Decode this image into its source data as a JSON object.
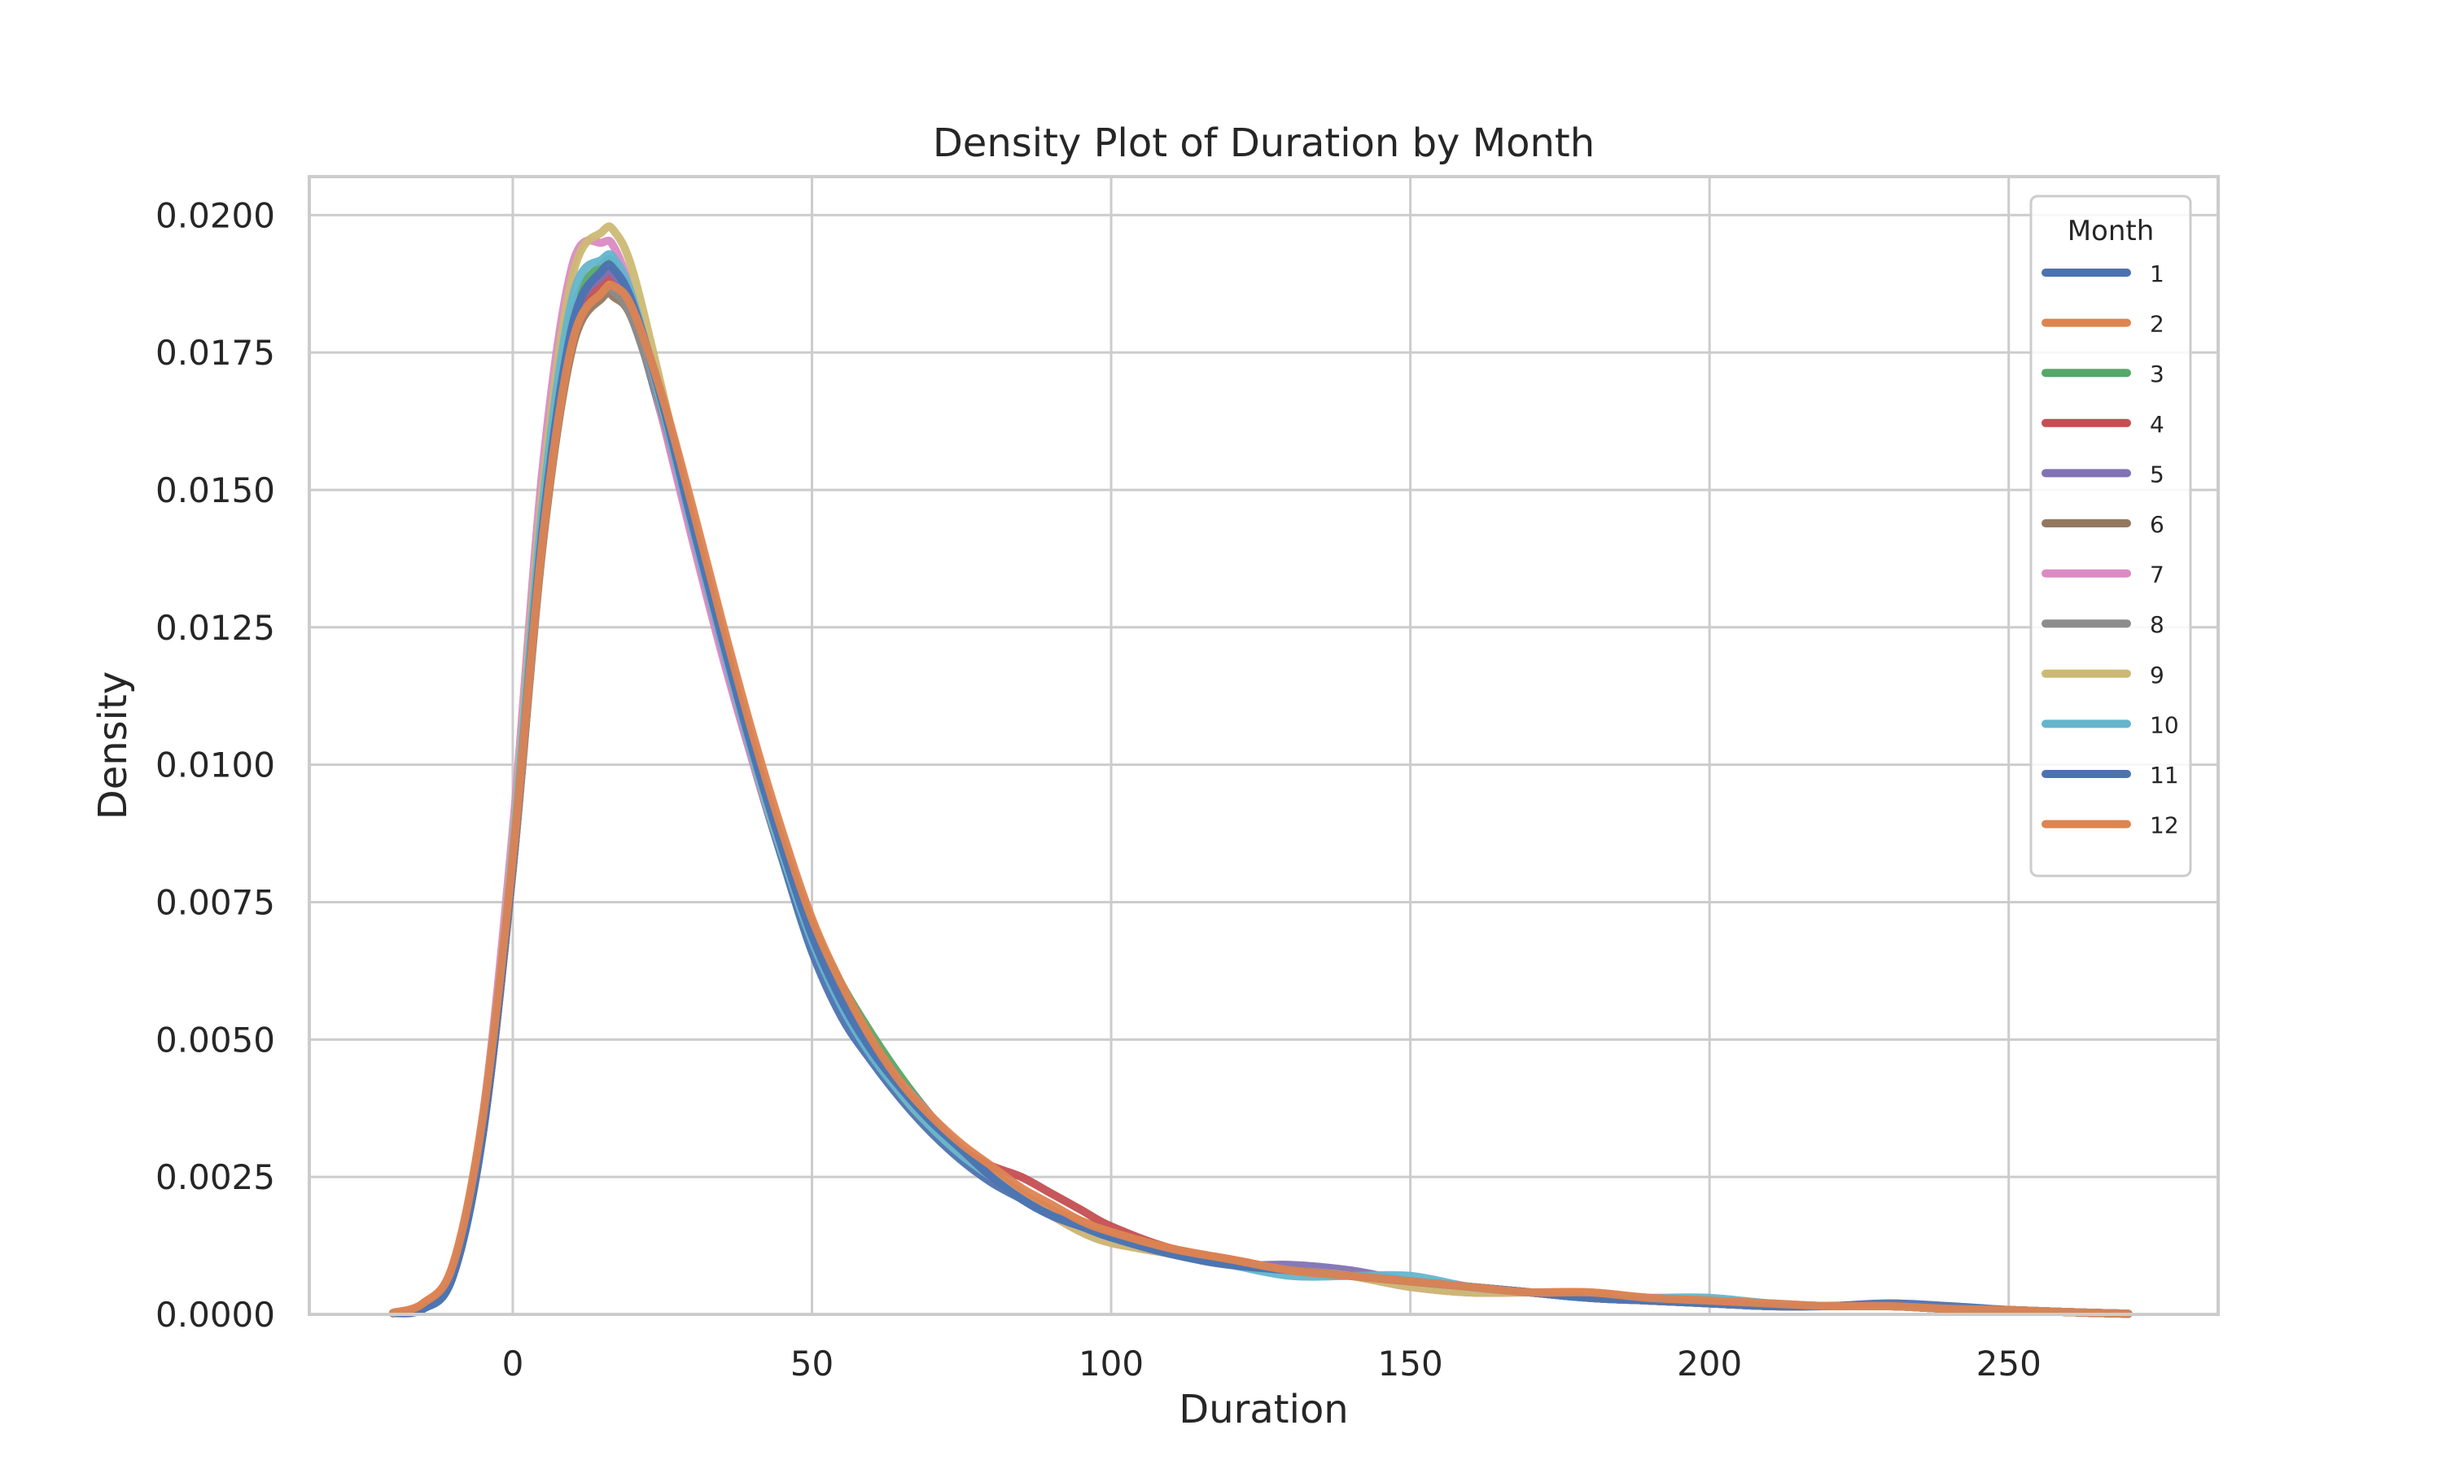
{
  "chart_data": {
    "type": "line",
    "title": "Density Plot of Duration by Month",
    "xlabel": "Duration",
    "ylabel": "Density",
    "xlim": [
      -34,
      285
    ],
    "ylim": [
      0,
      0.0207
    ],
    "grid": true,
    "xticks": [
      0,
      50,
      100,
      150,
      200,
      250
    ],
    "xtick_labels": [
      "0",
      "50",
      "100",
      "150",
      "200",
      "250"
    ],
    "yticks": [
      0,
      0.0025,
      0.005,
      0.0075,
      0.01,
      0.0125,
      0.015,
      0.0175,
      0.02
    ],
    "ytick_labels": [
      "0.0000",
      "0.0025",
      "0.0050",
      "0.0075",
      "0.0100",
      "0.0125",
      "0.0150",
      "0.0175",
      "0.0200"
    ],
    "legend": {
      "title": "Month",
      "placement": "upper right"
    },
    "x": [
      -20,
      -15,
      -10,
      -5,
      0,
      5,
      10,
      15,
      17,
      20,
      25,
      30,
      35,
      40,
      45,
      50,
      55,
      60,
      65,
      70,
      75,
      80,
      85,
      90,
      95,
      100,
      110,
      120,
      130,
      140,
      150,
      160,
      170,
      180,
      190,
      200,
      210,
      220,
      230,
      240,
      250,
      260,
      270
    ],
    "series": [
      {
        "name": "1",
        "color": "#4c72b0",
        "values": [
          2e-05,
          0.0001,
          0.0007,
          0.0033,
          0.0082,
          0.0143,
          0.0181,
          0.0189,
          0.0189,
          0.0182,
          0.0163,
          0.0142,
          0.0121,
          0.0101,
          0.0083,
          0.0066,
          0.0054,
          0.0046,
          0.0039,
          0.0033,
          0.0028,
          0.0024,
          0.0021,
          0.0018,
          0.0016,
          0.0014,
          0.0011,
          0.0009,
          0.0008,
          0.0007,
          0.0006,
          0.0005,
          0.0004,
          0.0003,
          0.00025,
          0.0002,
          0.00015,
          0.00015,
          0.00015,
          0.0001,
          8e-05,
          4e-05,
          1e-05
        ]
      },
      {
        "name": "2",
        "color": "#dd8452",
        "values": [
          2e-05,
          0.0002,
          0.0009,
          0.0036,
          0.0083,
          0.0142,
          0.0178,
          0.0186,
          0.0186,
          0.0181,
          0.0165,
          0.0145,
          0.0124,
          0.0104,
          0.0086,
          0.0071,
          0.0059,
          0.0049,
          0.0041,
          0.0035,
          0.003,
          0.0026,
          0.0022,
          0.0019,
          0.0017,
          0.0015,
          0.0012,
          0.001,
          0.0008,
          0.0007,
          0.0005,
          0.0004,
          0.0004,
          0.0004,
          0.0003,
          0.00025,
          0.0002,
          0.00015,
          0.00015,
          0.0001,
          8e-05,
          4e-05,
          1e-05
        ]
      },
      {
        "name": "3",
        "color": "#55a868",
        "values": [
          2e-05,
          0.0001,
          0.0007,
          0.0034,
          0.0083,
          0.0145,
          0.0182,
          0.0191,
          0.0191,
          0.0184,
          0.0165,
          0.0144,
          0.0123,
          0.0103,
          0.0086,
          0.0071,
          0.006,
          0.0051,
          0.0043,
          0.0036,
          0.003,
          0.0025,
          0.0021,
          0.0018,
          0.0016,
          0.0014,
          0.0011,
          0.0009,
          0.0008,
          0.0007,
          0.0006,
          0.0005,
          0.0004,
          0.0003,
          0.00025,
          0.0002,
          0.00015,
          0.00015,
          0.00015,
          0.0001,
          8e-05,
          4e-05,
          1e-05
        ]
      },
      {
        "name": "4",
        "color": "#c44e52",
        "values": [
          2e-05,
          0.0001,
          0.0007,
          0.0033,
          0.0081,
          0.0141,
          0.0178,
          0.0188,
          0.0188,
          0.0183,
          0.0165,
          0.0144,
          0.0123,
          0.0103,
          0.0085,
          0.007,
          0.0058,
          0.0048,
          0.0041,
          0.0035,
          0.003,
          0.0027,
          0.0025,
          0.0022,
          0.0019,
          0.0016,
          0.0012,
          0.001,
          0.0008,
          0.0007,
          0.0006,
          0.0005,
          0.0004,
          0.0003,
          0.00025,
          0.0002,
          0.00015,
          0.00015,
          0.00015,
          0.0001,
          8e-05,
          4e-05,
          1e-05
        ]
      },
      {
        "name": "5",
        "color": "#8172b3",
        "values": [
          2e-05,
          0.0001,
          0.0007,
          0.0034,
          0.0082,
          0.0143,
          0.018,
          0.0189,
          0.0189,
          0.0183,
          0.0165,
          0.0143,
          0.0122,
          0.0102,
          0.0085,
          0.007,
          0.0058,
          0.0049,
          0.0042,
          0.0036,
          0.003,
          0.0025,
          0.0021,
          0.0018,
          0.0016,
          0.0014,
          0.0011,
          0.0009,
          0.0009,
          0.0008,
          0.0006,
          0.0005,
          0.0004,
          0.0003,
          0.00025,
          0.0002,
          0.00015,
          0.00015,
          0.00015,
          0.0001,
          8e-05,
          4e-05,
          1e-05
        ]
      },
      {
        "name": "6",
        "color": "#937860",
        "values": [
          2e-05,
          0.0001,
          0.0007,
          0.0033,
          0.0081,
          0.014,
          0.0176,
          0.0185,
          0.0185,
          0.0181,
          0.0164,
          0.0144,
          0.0123,
          0.0103,
          0.0085,
          0.007,
          0.0058,
          0.0049,
          0.0041,
          0.0035,
          0.003,
          0.0025,
          0.0021,
          0.0018,
          0.0016,
          0.0014,
          0.0011,
          0.0009,
          0.0008,
          0.0007,
          0.0006,
          0.0005,
          0.0004,
          0.0003,
          0.00025,
          0.0002,
          0.00015,
          0.00015,
          0.00015,
          0.0001,
          8e-05,
          4e-05,
          1e-05
        ]
      },
      {
        "name": "7",
        "color": "#da8bc3",
        "values": [
          2e-05,
          0.0001,
          0.0008,
          0.0036,
          0.0088,
          0.0154,
          0.0191,
          0.0195,
          0.0194,
          0.0185,
          0.0163,
          0.0141,
          0.012,
          0.0101,
          0.0084,
          0.0069,
          0.0058,
          0.0049,
          0.0042,
          0.0036,
          0.003,
          0.0025,
          0.0021,
          0.0018,
          0.0015,
          0.0013,
          0.0011,
          0.0009,
          0.0008,
          0.0007,
          0.0005,
          0.0004,
          0.0004,
          0.0003,
          0.00025,
          0.0002,
          0.00015,
          0.00015,
          0.00015,
          0.0001,
          8e-05,
          4e-05,
          1e-05
        ]
      },
      {
        "name": "8",
        "color": "#8c8c8c",
        "values": [
          2e-05,
          0.0001,
          0.0007,
          0.0033,
          0.0081,
          0.0141,
          0.0177,
          0.0186,
          0.0186,
          0.0181,
          0.0164,
          0.0144,
          0.0123,
          0.0103,
          0.0085,
          0.007,
          0.0058,
          0.0049,
          0.0041,
          0.0035,
          0.003,
          0.0025,
          0.0021,
          0.0018,
          0.0016,
          0.0014,
          0.0011,
          0.0009,
          0.0008,
          0.0007,
          0.0006,
          0.0005,
          0.0004,
          0.0003,
          0.00025,
          0.0002,
          0.00015,
          0.00015,
          0.00015,
          0.0001,
          8e-05,
          4e-05,
          1e-05
        ]
      },
      {
        "name": "9",
        "color": "#ccb974",
        "values": [
          2e-05,
          0.0001,
          0.0007,
          0.0034,
          0.0085,
          0.015,
          0.0189,
          0.0197,
          0.0197,
          0.019,
          0.0168,
          0.0145,
          0.0123,
          0.0102,
          0.0084,
          0.0069,
          0.0057,
          0.0048,
          0.004,
          0.0034,
          0.0029,
          0.0025,
          0.0021,
          0.0018,
          0.0015,
          0.0013,
          0.0011,
          0.0009,
          0.0008,
          0.0007,
          0.0005,
          0.0004,
          0.0004,
          0.0003,
          0.00025,
          0.0002,
          0.00015,
          0.00015,
          0.00015,
          0.0001,
          8e-05,
          4e-05,
          1e-05
        ]
      },
      {
        "name": "10",
        "color": "#64b5cd",
        "values": [
          2e-05,
          0.0001,
          0.0007,
          0.0034,
          0.0084,
          0.0147,
          0.0185,
          0.0192,
          0.0192,
          0.0185,
          0.0165,
          0.0143,
          0.0122,
          0.0102,
          0.0084,
          0.0068,
          0.0056,
          0.0047,
          0.004,
          0.0034,
          0.0029,
          0.0025,
          0.0021,
          0.0018,
          0.0016,
          0.0014,
          0.0011,
          0.0009,
          0.0007,
          0.0007,
          0.0007,
          0.0005,
          0.0004,
          0.0003,
          0.0003,
          0.0003,
          0.0002,
          0.00015,
          0.00015,
          0.0001,
          8e-05,
          4e-05,
          1e-05
        ]
      },
      {
        "name": "11",
        "color": "#4c72b0",
        "values": [
          2e-05,
          0.0001,
          0.0007,
          0.0033,
          0.0082,
          0.0143,
          0.018,
          0.019,
          0.019,
          0.0184,
          0.0166,
          0.0144,
          0.0123,
          0.0103,
          0.0085,
          0.0069,
          0.0057,
          0.0048,
          0.0041,
          0.0035,
          0.003,
          0.0025,
          0.0021,
          0.0018,
          0.0016,
          0.0014,
          0.0011,
          0.0009,
          0.0008,
          0.0007,
          0.0006,
          0.0005,
          0.0004,
          0.0003,
          0.00025,
          0.0002,
          0.00015,
          0.00015,
          0.0002,
          0.00015,
          8e-05,
          4e-05,
          1e-05
        ]
      },
      {
        "name": "12",
        "color": "#dd8452",
        "values": [
          3e-05,
          0.0002,
          0.0009,
          0.0036,
          0.0083,
          0.0141,
          0.0177,
          0.0186,
          0.0187,
          0.0183,
          0.0167,
          0.0147,
          0.0126,
          0.0106,
          0.0088,
          0.0072,
          0.006,
          0.005,
          0.0042,
          0.0036,
          0.0031,
          0.0027,
          0.0023,
          0.002,
          0.0017,
          0.0015,
          0.0012,
          0.001,
          0.0008,
          0.0007,
          0.0006,
          0.0005,
          0.0004,
          0.0004,
          0.0003,
          0.00025,
          0.0002,
          0.00015,
          0.00015,
          0.0001,
          8e-05,
          4e-05,
          1e-05
        ]
      }
    ]
  }
}
